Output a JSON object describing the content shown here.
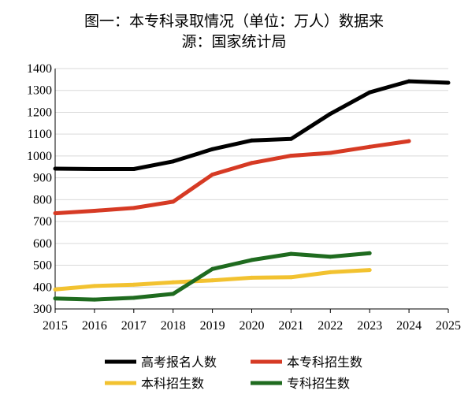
{
  "chart_data": {
    "type": "line",
    "title_line1": "图一：本专科录取情况（单位：万人）数据来",
    "title_line2": "源：国家统计局",
    "xlim": [
      2015,
      2025
    ],
    "ylim": [
      300,
      1400
    ],
    "x_ticks": [
      "2015",
      "2016",
      "2017",
      "2018",
      "2019",
      "2020",
      "2021",
      "2022",
      "2023",
      "2024",
      "2025"
    ],
    "y_ticks": [
      "300",
      "400",
      "500",
      "600",
      "700",
      "800",
      "900",
      "1000",
      "1100",
      "1200",
      "1300",
      "1400"
    ],
    "grid": true,
    "legend_position": "bottom",
    "series": [
      {
        "name": "高考报名人数",
        "color": "#000000",
        "x": [
          2015,
          2016,
          2017,
          2018,
          2019,
          2020,
          2021,
          2022,
          2023,
          2024,
          2025
        ],
        "y": [
          942,
          940,
          940,
          975,
          1031,
          1071,
          1078,
          1193,
          1291,
          1342,
          1335
        ]
      },
      {
        "name": "本专科招生数",
        "color": "#d63a24",
        "x": [
          2015,
          2016,
          2017,
          2018,
          2019,
          2020,
          2021,
          2022,
          2023,
          2024
        ],
        "y": [
          738,
          749,
          762,
          791,
          915,
          968,
          1001,
          1014,
          1042,
          1068
        ]
      },
      {
        "name": "本科招生数",
        "color": "#f2c230",
        "x": [
          2015,
          2016,
          2017,
          2018,
          2019,
          2020,
          2021,
          2022,
          2023
        ],
        "y": [
          389,
          405,
          411,
          422,
          431,
          443,
          445,
          468,
          478
        ]
      },
      {
        "name": "专科招生数",
        "color": "#1f6b1f",
        "x": [
          2015,
          2016,
          2017,
          2018,
          2019,
          2020,
          2021,
          2022,
          2023
        ],
        "y": [
          348,
          343,
          351,
          369,
          483,
          524,
          552,
          539,
          555
        ]
      }
    ]
  }
}
